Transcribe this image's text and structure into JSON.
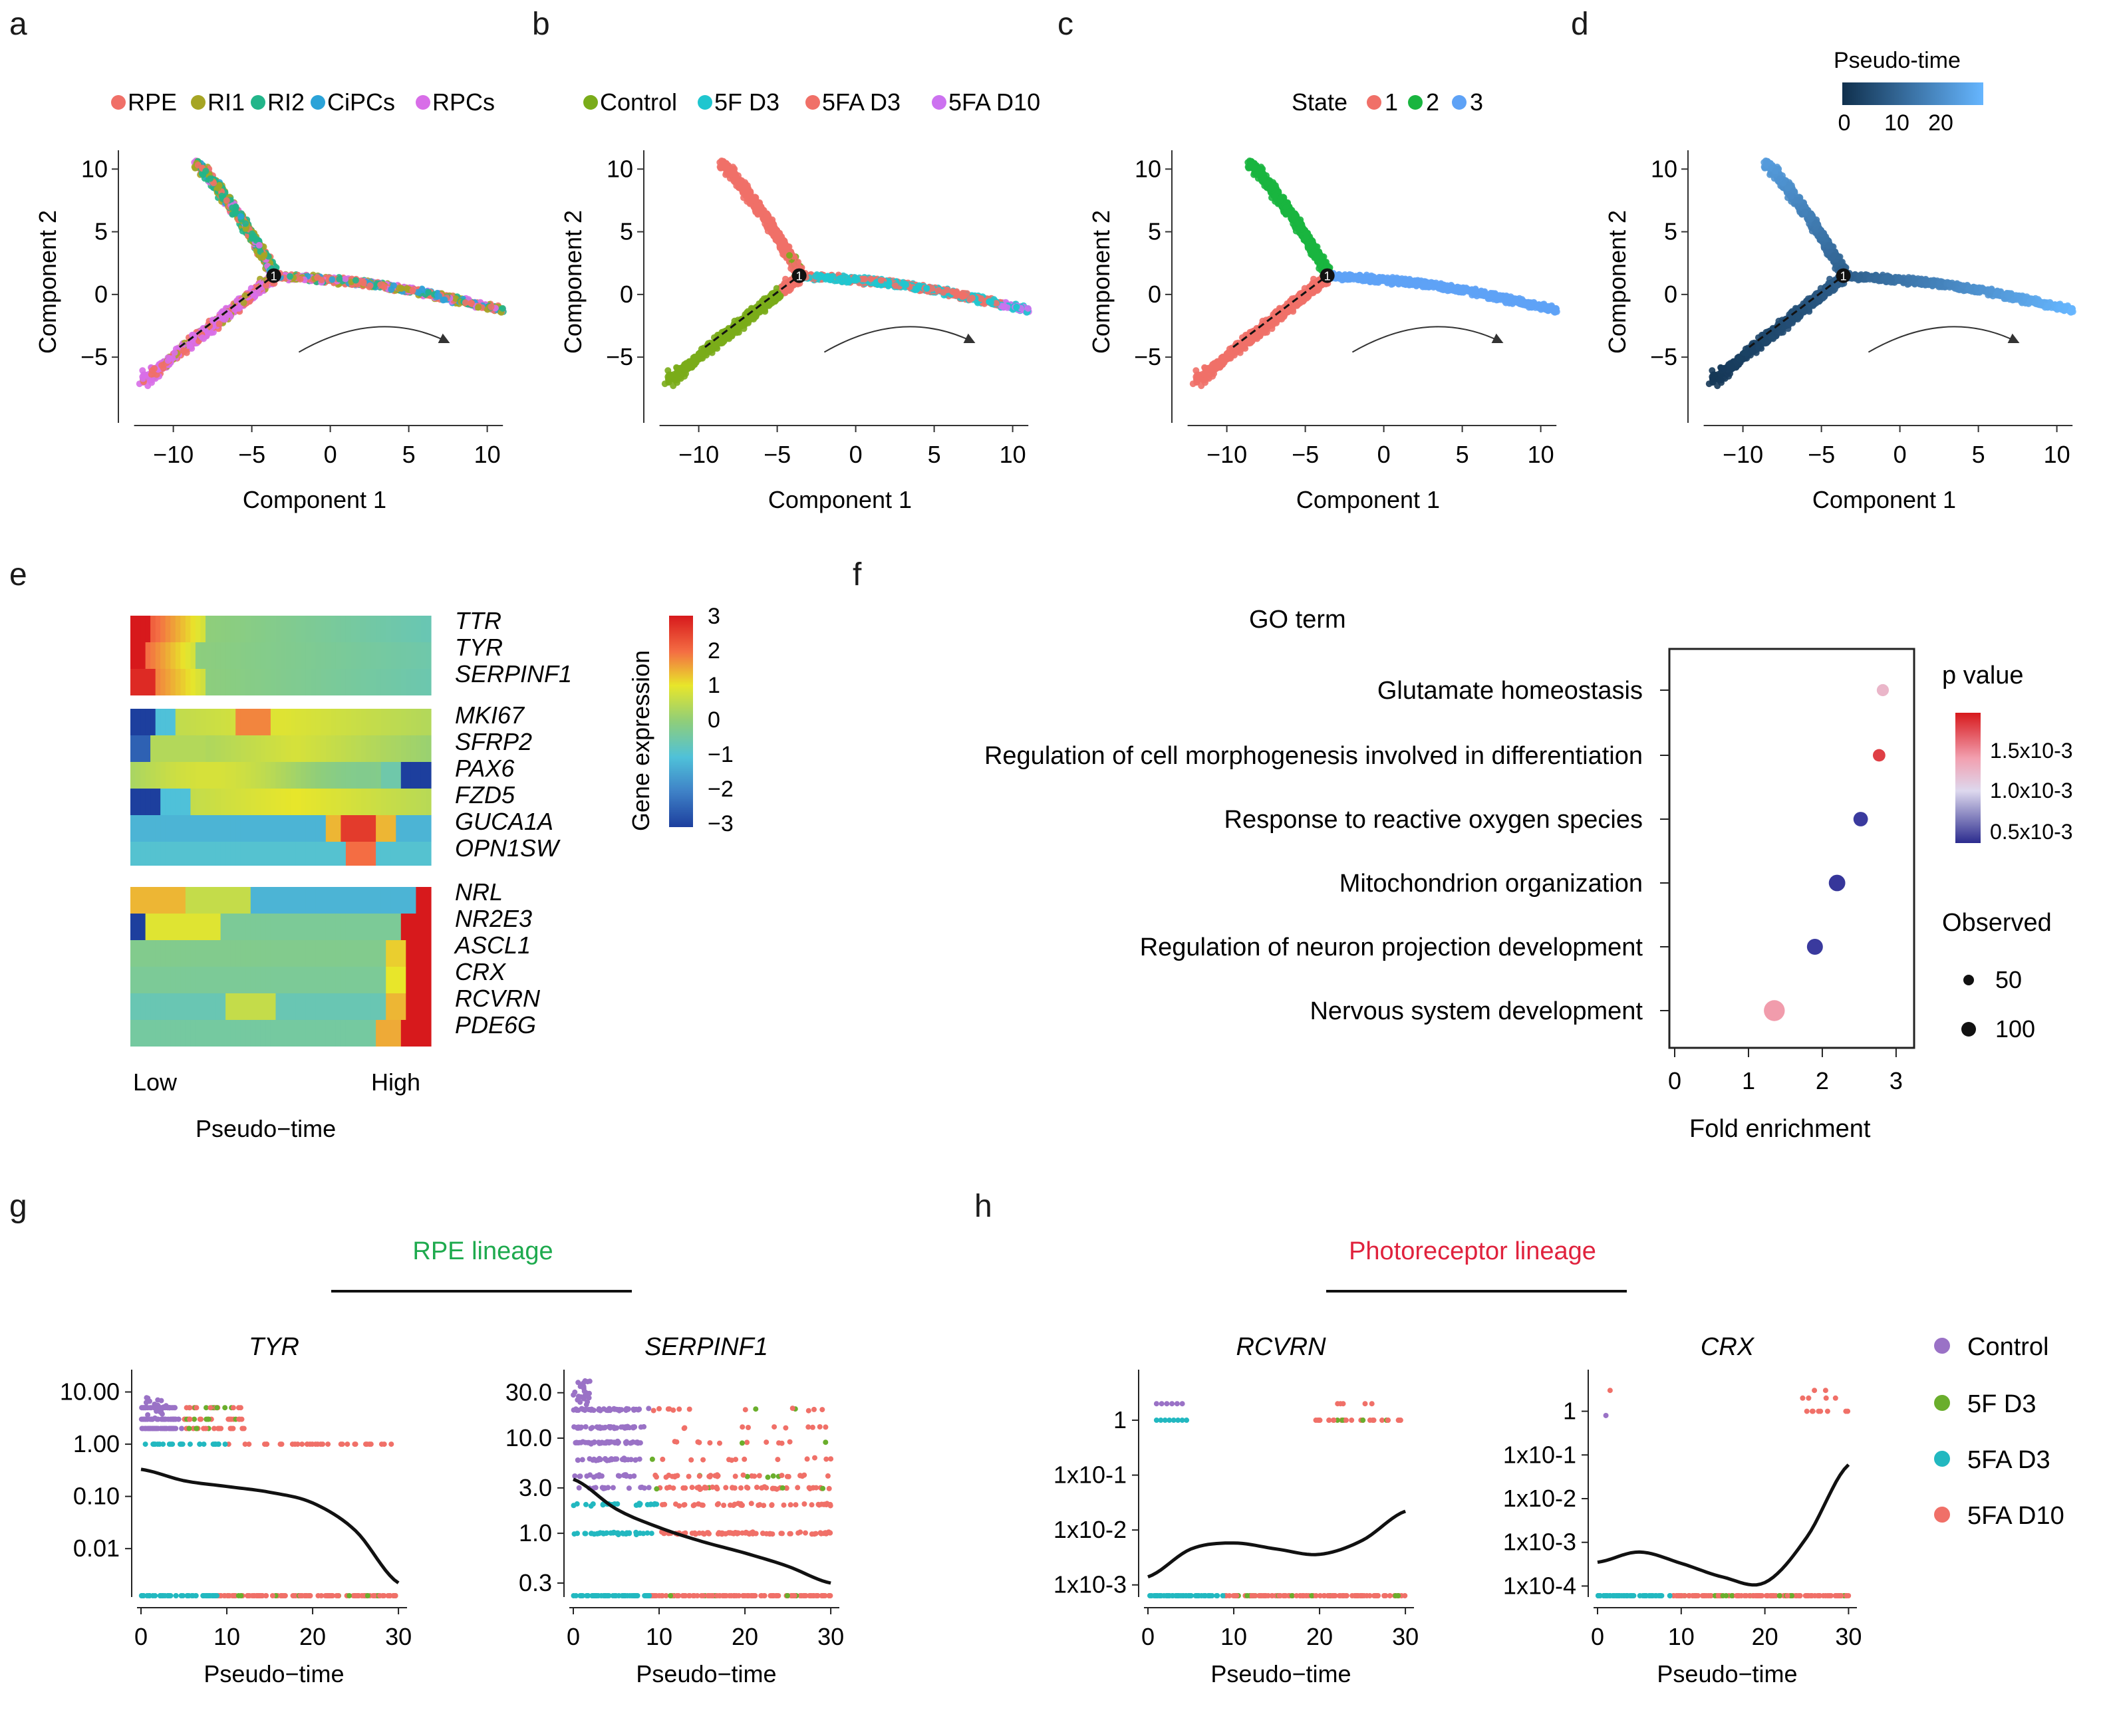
{
  "figure": {
    "panels": [
      "a",
      "b",
      "c",
      "d",
      "e",
      "f",
      "g",
      "h"
    ]
  },
  "colors": {
    "rpe": "#f07068",
    "ri1": "#a6a524",
    "ri2": "#22b58a",
    "cipcs": "#2ba3d8",
    "rpcs": "#d86ee8",
    "control_traj": "#7aac1a",
    "f5d3_traj": "#1fc6cf",
    "fa5d3_traj": "#f07068",
    "fa5d10_traj": "#cc72f0",
    "state1": "#f07068",
    "state2": "#19b53f",
    "state3": "#5ea2f6",
    "pt_low": "#10304d",
    "pt_high": "#66b6ff",
    "control_pt": "#9a72c6",
    "f5d3_pt": "#6aae2c",
    "fa5d3_pt": "#22b8c0",
    "fa5d10_pt": "#f07068",
    "rpe_lineage": "#1eaa4e",
    "photo_lineage": "#e0223d"
  },
  "trajectory": {
    "xlabel": "Component 1",
    "ylabel": "Component 2",
    "xticks": [
      -10,
      -5,
      0,
      5,
      10
    ],
    "yticks": [
      10,
      5,
      0,
      -5
    ],
    "xlim": [
      -13.5,
      11.5
    ],
    "ylim": [
      -9.5,
      11.5
    ],
    "branch_point_label": "1",
    "panel_a": {
      "legend": [
        "RPE",
        "RI1",
        "RI2",
        "CiPCs",
        "RPCs"
      ]
    },
    "panel_b": {
      "legend": [
        "Control",
        "5F  D3",
        "5FA D3",
        "5FA D10"
      ]
    },
    "panel_c": {
      "legend_title": "State",
      "legend": [
        "1",
        "2",
        "3"
      ]
    },
    "panel_d": {
      "legend_title": "Pseudo-time",
      "ticks": [
        "0",
        "10",
        "20"
      ]
    }
  },
  "heatmap": {
    "ylabel": "Gene expression",
    "scale_ticks": [
      "3",
      "2",
      "1",
      "0",
      "−1",
      "−2",
      "−3"
    ],
    "xlabel_low": "Low",
    "xlabel_high": "High",
    "xlabel": "Pseudo−time",
    "cluster1": [
      "TTR",
      "TYR",
      "SERPINF1"
    ],
    "cluster2": [
      "MKI67",
      "SFRP2",
      "PAX6",
      "FZD5",
      "GUCA1A",
      "OPN1SW"
    ],
    "cluster3": [
      "NRL",
      "NR2E3",
      "ASCL1",
      "CRX",
      "RCVRN",
      "PDE6G"
    ]
  },
  "chart_data": [
    {
      "type": "scatter",
      "panel": "f",
      "title": "GO term",
      "xlabel": "Fold enrichment",
      "xticks": [
        "0",
        "1",
        "2",
        "3"
      ],
      "xlim": [
        0,
        3.1
      ],
      "categories": [
        "Glutamate homeostasis",
        "Regulation of cell morphogenesis involved in differentiation",
        "Response to reactive oxygen species",
        "Mitochondrion organization",
        "Regulation of neuron projection development",
        "Nervous system development"
      ],
      "fold_enrichment": [
        2.82,
        2.77,
        2.52,
        2.2,
        1.9,
        1.35
      ],
      "observed": [
        12,
        14,
        30,
        50,
        45,
        115
      ],
      "p_value": [
        0.0011,
        0.0018,
        0.0004,
        0.00035,
        0.0004,
        0.0013
      ],
      "p_legend_title": "p value",
      "p_ticks": [
        "1.5x10-3",
        "1.0x10-3",
        "0.5x10-3"
      ],
      "observed_legend_title": "Observed",
      "observed_ticks": [
        "50",
        "100"
      ]
    },
    {
      "type": "scatter",
      "panel": "g",
      "lineage": "RPE lineage",
      "gene": "TYR",
      "xlabel": "Pseudo−time",
      "xticks": [
        "0",
        "10",
        "20",
        "30"
      ],
      "yticks": [
        "10.00",
        "1.00",
        "0.10",
        "0.01"
      ],
      "ylim_log10": [
        -2.8,
        1.3
      ],
      "trend": {
        "x": [
          0,
          5,
          10,
          15,
          20,
          25,
          30
        ],
        "y": [
          0.33,
          0.2,
          0.155,
          0.12,
          0.075,
          0.022,
          0.0022
        ]
      }
    },
    {
      "type": "scatter",
      "panel": "g",
      "gene": "SERPINF1",
      "xlabel": "Pseudo−time",
      "xticks": [
        "0",
        "10",
        "20",
        "30"
      ],
      "yticks": [
        "30.0",
        "10.0",
        "3.0",
        "1.0",
        "0.3"
      ],
      "ylim_log10": [
        -0.6,
        1.65
      ],
      "trend": {
        "x": [
          0,
          5,
          10,
          15,
          20,
          25,
          30
        ],
        "y": [
          3.7,
          1.8,
          1.15,
          0.82,
          0.62,
          0.45,
          0.3
        ]
      }
    },
    {
      "type": "scatter",
      "panel": "h",
      "lineage": "Photoreceptor lineage",
      "gene": "RCVRN",
      "xlabel": "Pseudo−time",
      "xticks": [
        "0",
        "10",
        "20",
        "30"
      ],
      "yticks": [
        "1",
        "1x10-1",
        "1x10-2",
        "1x10-3"
      ],
      "ylim_log10": [
        -3.1,
        0.8
      ],
      "trend": {
        "x": [
          0,
          5,
          10,
          15,
          20,
          25,
          30
        ],
        "y": [
          0.0014,
          0.0045,
          0.0058,
          0.0045,
          0.0036,
          0.0065,
          0.022
        ]
      }
    },
    {
      "type": "scatter",
      "panel": "h",
      "gene": "CRX",
      "xlabel": "Pseudo−time",
      "xticks": [
        "0",
        "10",
        "20",
        "30"
      ],
      "yticks": [
        "1",
        "1x10-1",
        "1x10-2",
        "1x10-3",
        "1x10-4"
      ],
      "ylim_log10": [
        -4.1,
        0.8
      ],
      "trend": {
        "x": [
          0,
          5,
          10,
          15,
          20,
          25,
          30
        ],
        "y": [
          0.00035,
          0.0006,
          0.00033,
          0.00016,
          0.00012,
          0.0013,
          0.06
        ]
      }
    }
  ],
  "pseudotime_legend": [
    "Control",
    "5F  D3",
    "5FA D3",
    "5FA D10"
  ]
}
